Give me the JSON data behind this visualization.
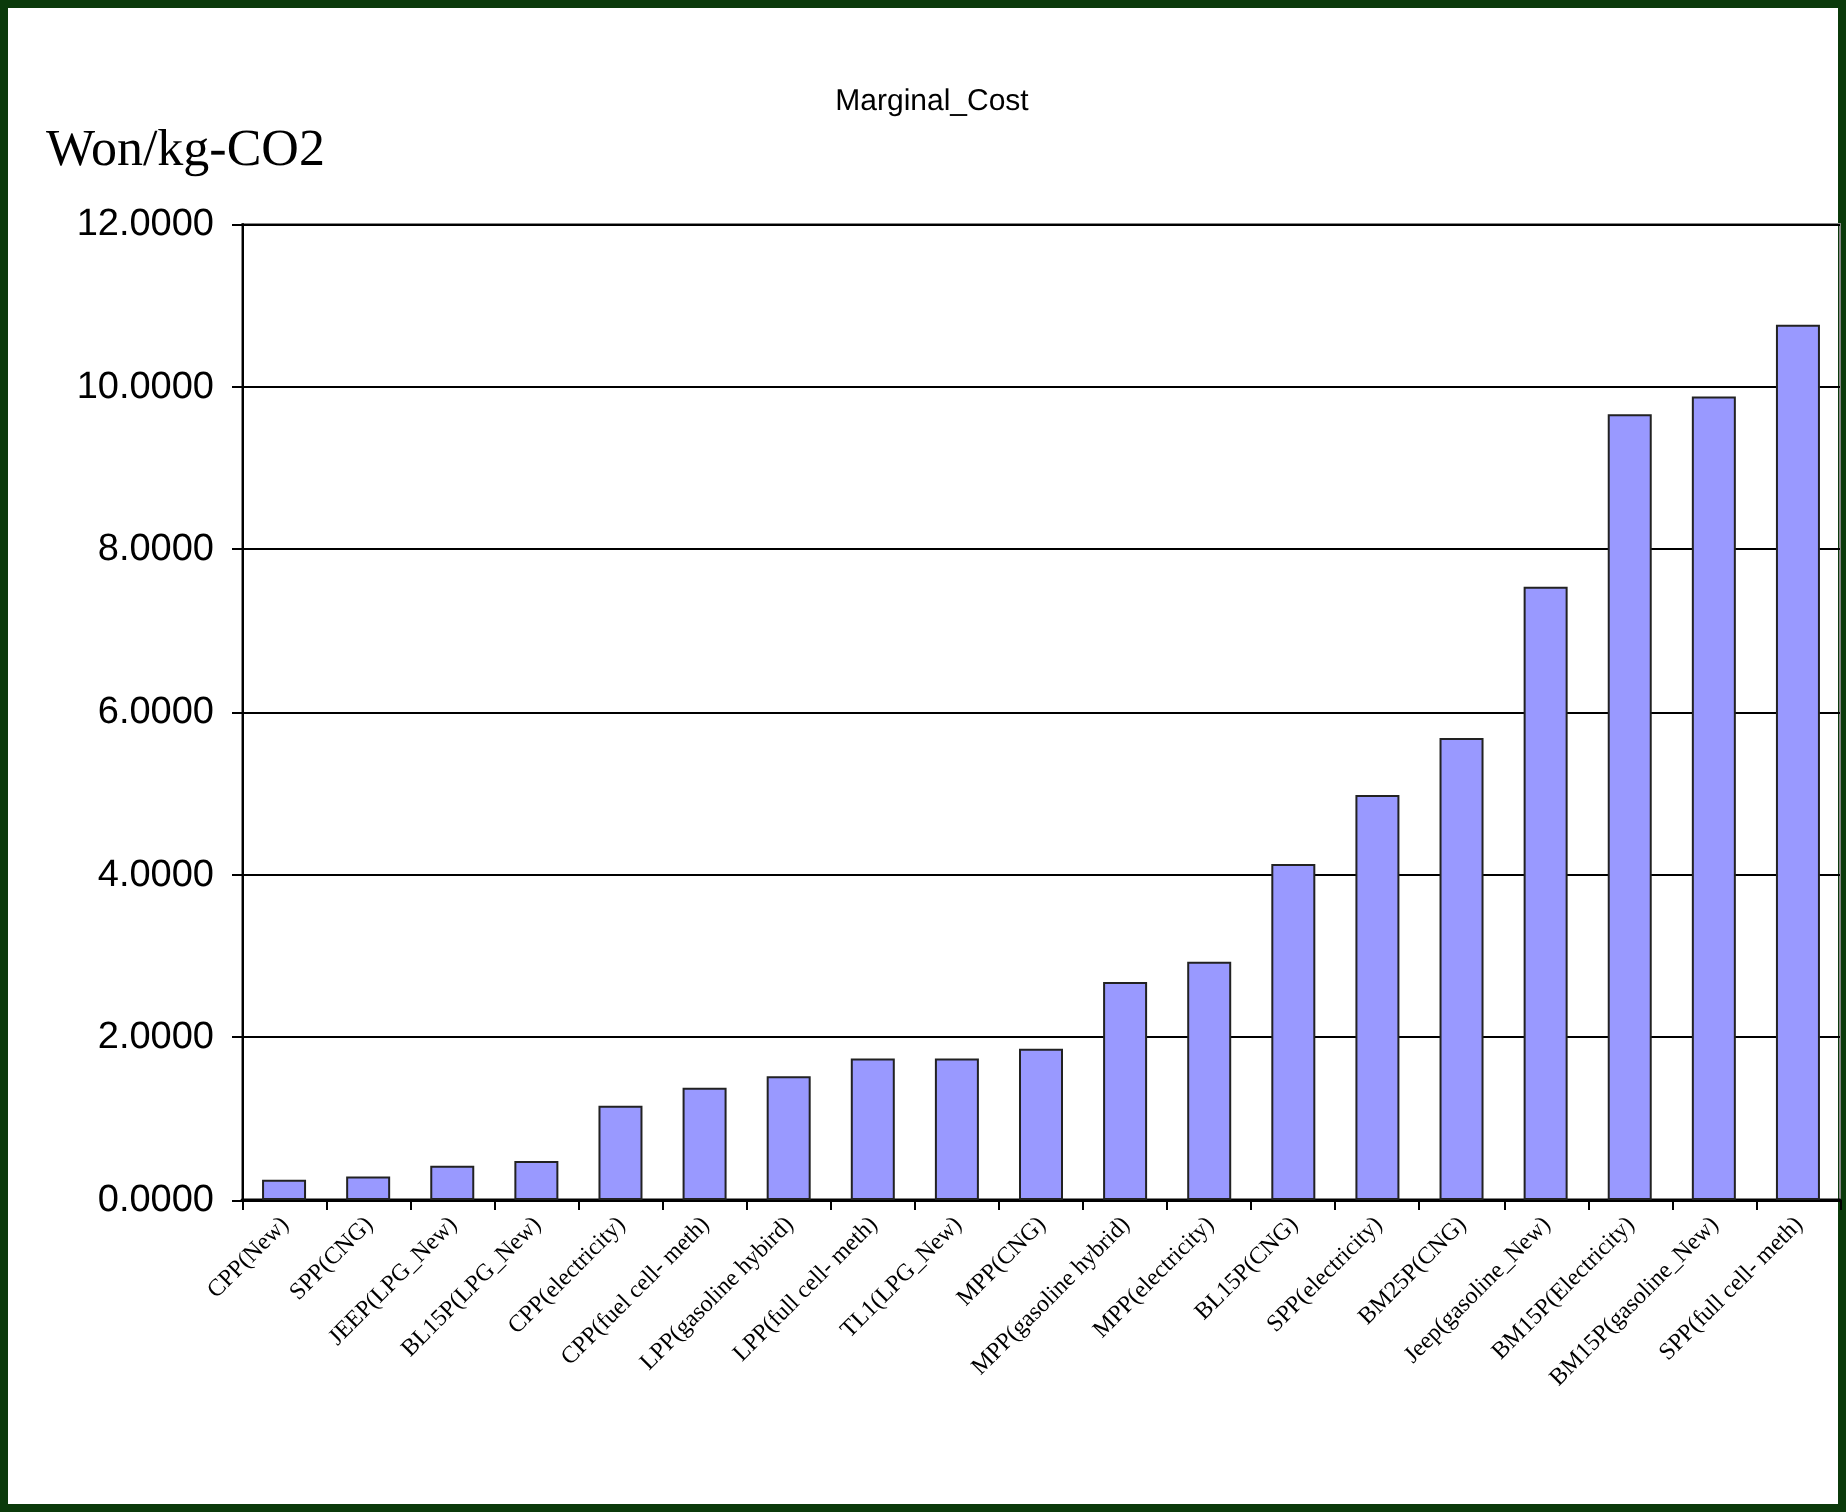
{
  "chart_data": {
    "type": "bar",
    "title": "Marginal_Cost",
    "ylabel": "Won/kg-CO2",
    "categories": [
      "CPP(New)",
      "SPP(CNG)",
      "JEEP(LPG_New)",
      "BL15P(LPG_New)",
      "CPP(electricity)",
      "CPP(fuel cell- meth)",
      "LPP(gasoline hybird)",
      "LPP(full cell- meth)",
      "TL1(LPG_New)",
      "MPP(CNG)",
      "MPP(gasoline hybrid)",
      "MPP(electricity)",
      "BL15P(CNG)",
      "SPP(electricity)",
      "BM25P(CNG)",
      "Jeep(gasoline_New)",
      "BM15P(Electricity)",
      "BM15P(gasoline_New)",
      "SPP(full cell- meth)"
    ],
    "values": [
      0.25,
      0.29,
      0.42,
      0.48,
      1.16,
      1.38,
      1.52,
      1.74,
      1.74,
      1.86,
      2.68,
      2.93,
      4.13,
      4.98,
      5.68,
      7.54,
      9.66,
      9.88,
      10.76
    ],
    "color": "#9999ff",
    "ylim": [
      0,
      12
    ],
    "yticks": [
      {
        "value": 0,
        "label": "0.0000"
      },
      {
        "value": 2,
        "label": "2.0000"
      },
      {
        "value": 4,
        "label": "4.0000"
      },
      {
        "value": 6,
        "label": "6.0000"
      },
      {
        "value": 8,
        "label": "8.0000"
      },
      {
        "value": 10,
        "label": "10.0000"
      },
      {
        "value": 12,
        "label": "12.0000"
      }
    ],
    "grid": "y"
  }
}
